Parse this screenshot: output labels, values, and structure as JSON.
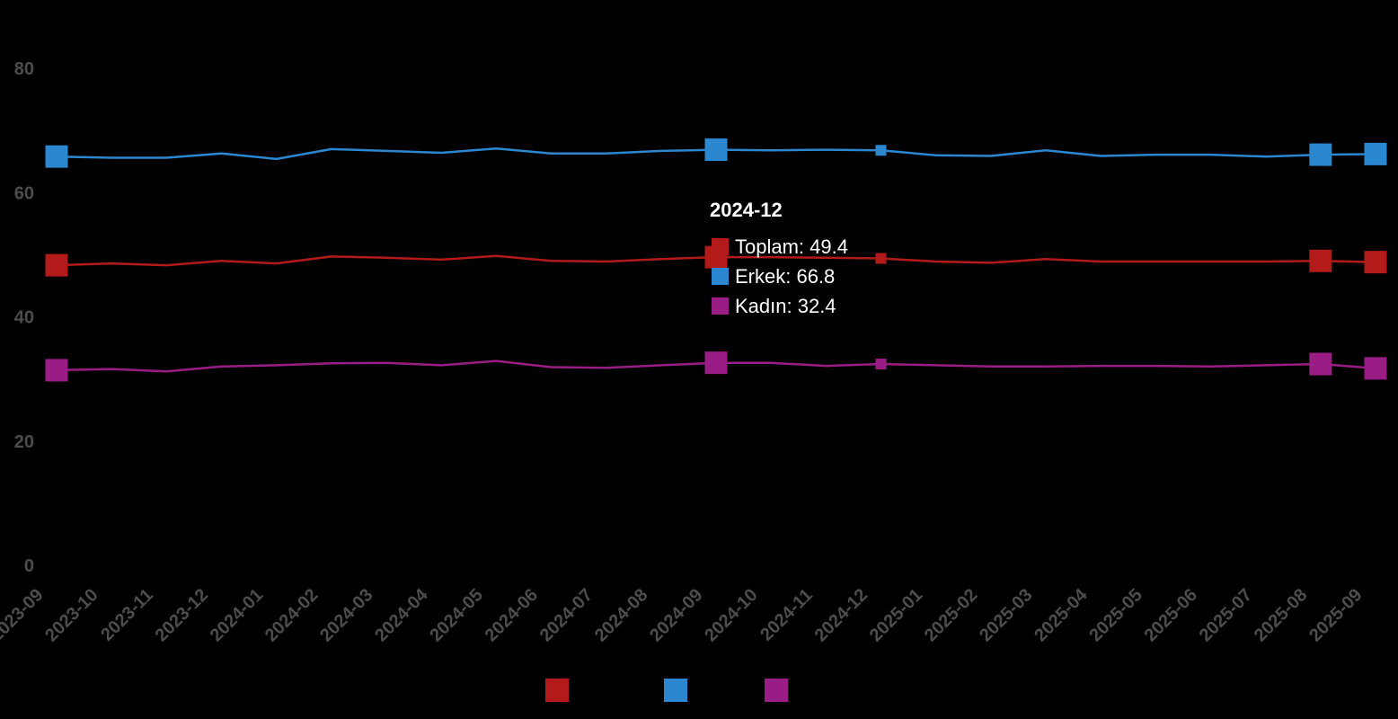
{
  "chart_data": {
    "type": "line",
    "x": [
      "2023-09",
      "2023-10",
      "2023-11",
      "2023-12",
      "2024-01",
      "2024-02",
      "2024-03",
      "2024-04",
      "2024-05",
      "2024-06",
      "2024-07",
      "2024-08",
      "2024-09",
      "2024-10",
      "2024-11",
      "2024-12",
      "2025-01",
      "2025-02",
      "2025-03",
      "2025-04",
      "2025-05",
      "2025-06",
      "2025-07",
      "2025-08",
      "2025-09"
    ],
    "series": [
      {
        "name": "Toplam",
        "color": "#b31b1b",
        "values": [
          48.3,
          48.6,
          48.3,
          49.0,
          48.6,
          49.7,
          49.5,
          49.2,
          49.8,
          49.0,
          48.9,
          49.3,
          49.6,
          49.6,
          49.5,
          49.4,
          48.9,
          48.7,
          49.3,
          48.9,
          48.9,
          48.9,
          48.9,
          49.0,
          48.8
        ],
        "markers": [
          0,
          12,
          23,
          24
        ]
      },
      {
        "name": "Erkek",
        "color": "#2a87d0",
        "values": [
          65.8,
          65.6,
          65.6,
          66.3,
          65.4,
          67.0,
          66.7,
          66.4,
          67.1,
          66.3,
          66.3,
          66.7,
          66.9,
          66.8,
          66.9,
          66.8,
          66.0,
          65.9,
          66.8,
          65.9,
          66.1,
          66.1,
          65.8,
          66.1,
          66.2
        ],
        "markers": [
          0,
          12,
          23,
          24
        ]
      },
      {
        "name": "Kadın",
        "color": "#9a1d85",
        "values": [
          31.4,
          31.6,
          31.2,
          32.0,
          32.2,
          32.5,
          32.6,
          32.2,
          32.9,
          31.9,
          31.8,
          32.2,
          32.6,
          32.6,
          32.1,
          32.4,
          32.2,
          32.0,
          32.0,
          32.1,
          32.1,
          32.0,
          32.2,
          32.4,
          31.7
        ],
        "markers": [
          0,
          12,
          23,
          24
        ]
      }
    ],
    "ylim": [
      0,
      80
    ],
    "yticks": [
      0,
      20,
      40,
      60,
      80
    ],
    "grid": false,
    "legend_position": "bottom-center",
    "highlight_index": 15
  },
  "tooltip": {
    "title": "2024-12",
    "rows": [
      {
        "label": "Toplam: 49.4",
        "color": "#b31b1b"
      },
      {
        "label": "Erkek: 66.8",
        "color": "#2a87d0"
      },
      {
        "label": "Kadın: 32.4",
        "color": "#9a1d85"
      }
    ]
  }
}
